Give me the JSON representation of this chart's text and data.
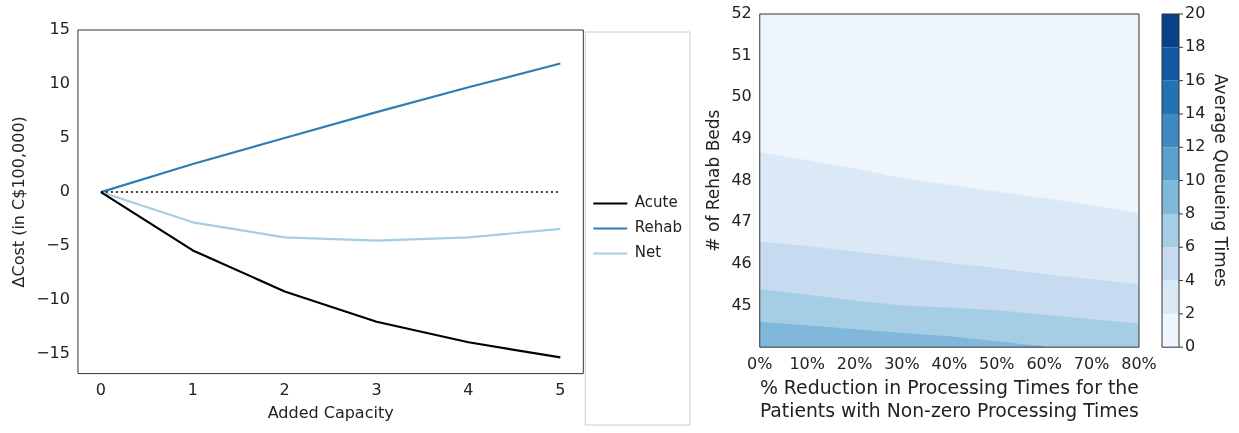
{
  "chart_data": [
    {
      "type": "line",
      "xlabel": "Added Capacity",
      "ylabel": "ΔCost (in C$100,000)",
      "x": [
        0,
        1,
        2,
        3,
        4,
        5
      ],
      "xlim": [
        -0.25,
        5.25
      ],
      "xticks": [
        0,
        1,
        2,
        3,
        4,
        5
      ],
      "ylim": [
        -16.8,
        15
      ],
      "yticks": [
        {
          "value": -15,
          "label": "−15"
        },
        {
          "value": -10,
          "label": "−10"
        },
        {
          "value": -5,
          "label": "−5"
        },
        0,
        5,
        10,
        15
      ],
      "grid": false,
      "legend": "right",
      "marker": "none",
      "line_style": "solid",
      "series": [
        {
          "name": "Acute",
          "color": "#000000",
          "values": [
            0,
            -5.4,
            -9.2,
            -12.0,
            -13.9,
            -15.3
          ]
        },
        {
          "name": "Rehab",
          "color": "#2f7db5",
          "values": [
            0,
            2.6,
            5.0,
            7.4,
            9.7,
            11.9
          ]
        },
        {
          "name": "Net",
          "color": "#a6cde3",
          "values": [
            0,
            -2.8,
            -4.2,
            -4.5,
            -4.2,
            -3.4
          ]
        }
      ],
      "ref_lines": [
        {
          "axis": "y",
          "value": 0,
          "color": "#000000",
          "line_style": "dotted"
        }
      ]
    },
    {
      "type": "area",
      "xlabel": "% Reduction in Processing Times for the\nPatients with Non-zero Processing Times",
      "ylabel": "# of Rehab Beds",
      "clabel": "Average Queueing Times",
      "x": [
        0,
        10,
        20,
        30,
        40,
        50,
        60,
        70,
        80
      ],
      "xlim": [
        0,
        80
      ],
      "xticks": [
        {
          "value": 0,
          "label": "0%"
        },
        {
          "value": 10,
          "label": "10%"
        },
        {
          "value": 20,
          "label": "20%"
        },
        {
          "value": 30,
          "label": "30%"
        },
        {
          "value": 40,
          "label": "40%"
        },
        {
          "value": 50,
          "label": "50%"
        },
        {
          "value": 60,
          "label": "60%"
        },
        {
          "value": 70,
          "label": "70%"
        },
        {
          "value": 80,
          "label": "80%"
        }
      ],
      "ylim": [
        44.0,
        52
      ],
      "yticks": [
        45,
        46,
        47,
        48,
        49,
        50,
        51,
        52
      ],
      "grid": false,
      "legend": false,
      "clim": [
        0,
        20
      ],
      "cticks": [
        0,
        2,
        4,
        6,
        8,
        10,
        12,
        14,
        16,
        18,
        20
      ],
      "colors": [
        "#eef5fc",
        "#dbe9f6",
        "#c6dbef",
        "#a5cde3",
        "#7fb8da",
        "#5aa0ce",
        "#3e8ac2",
        "#2272b5",
        "#1059a2",
        "#08418a"
      ],
      "series": [
        {
          "color": "#7fb8da",
          "values": [
            44.61,
            44.53,
            44.43,
            44.34,
            44.26,
            44.14,
            44.02,
            null,
            null
          ]
        },
        {
          "color": "#a5cde3",
          "values": [
            45.39,
            45.26,
            45.12,
            45.0,
            44.95,
            44.89,
            44.78,
            44.67,
            44.57
          ]
        },
        {
          "color": "#c6dbef",
          "values": [
            46.54,
            46.43,
            46.3,
            46.17,
            46.02,
            45.9,
            45.76,
            45.63,
            45.51
          ]
        },
        {
          "color": "#dbe9f6",
          "values": [
            48.69,
            48.49,
            48.29,
            48.06,
            47.9,
            47.74,
            47.58,
            47.41,
            47.23
          ]
        }
      ]
    }
  ]
}
